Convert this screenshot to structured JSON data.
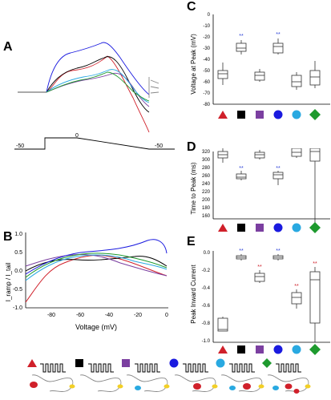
{
  "panel_labels": {
    "a": "A",
    "b": "B",
    "c": "C",
    "d": "D",
    "e": "E"
  },
  "panel_a": {
    "protocol_labels": {
      "left_v": "-50",
      "mid_v": "0",
      "right_v": "-50"
    }
  },
  "panel_b": {
    "ylabel": "I_ramp / I_tail",
    "xlabel": "Voltage (mV)",
    "xticks": [
      "-80",
      "-60",
      "-40",
      "-20",
      "0"
    ],
    "yticks": [
      "1.0",
      "0.5",
      "0.0",
      "-0.5",
      "-1.0"
    ]
  },
  "panel_c": {
    "ylabel": "Voltage at Peak (mV)",
    "yticks": [
      "0",
      "-10",
      "-20",
      "-30",
      "-40",
      "-50",
      "-60",
      "-70",
      "-80"
    ],
    "stars": [
      "**",
      "**"
    ]
  },
  "panel_d": {
    "ylabel": "Time to Peak (ms)",
    "yticks": [
      "320",
      "300",
      "280",
      "260",
      "240",
      "220",
      "200",
      "180",
      "160"
    ],
    "stars": [
      "**",
      "**"
    ]
  },
  "panel_e": {
    "ylabel": "Peak Inward Current",
    "yticks": [
      "0.0",
      "-0.2",
      "-0.4",
      "-0.6",
      "-0.8",
      "-1.0"
    ],
    "stars_blue": [
      "**",
      "**"
    ],
    "stars_red": [
      "**",
      "**",
      "**"
    ]
  },
  "markers": [
    {
      "shape": "triangle",
      "color": "#d0202a"
    },
    {
      "shape": "square",
      "color": "#000000"
    },
    {
      "shape": "square",
      "color": "#7b3fa0"
    },
    {
      "shape": "circle",
      "color": "#1a1adf"
    },
    {
      "shape": "circle",
      "color": "#29a9e1"
    },
    {
      "shape": "diamond",
      "color": "#1e9a2e"
    }
  ],
  "colors": {
    "red": "#d0202a",
    "black": "#000000",
    "purple": "#7b3fa0",
    "blue": "#1a1adf",
    "cyan": "#29a9e1",
    "green": "#1e9a2e",
    "star_blue": "#2a3fd6",
    "star_red": "#d0202a"
  }
}
